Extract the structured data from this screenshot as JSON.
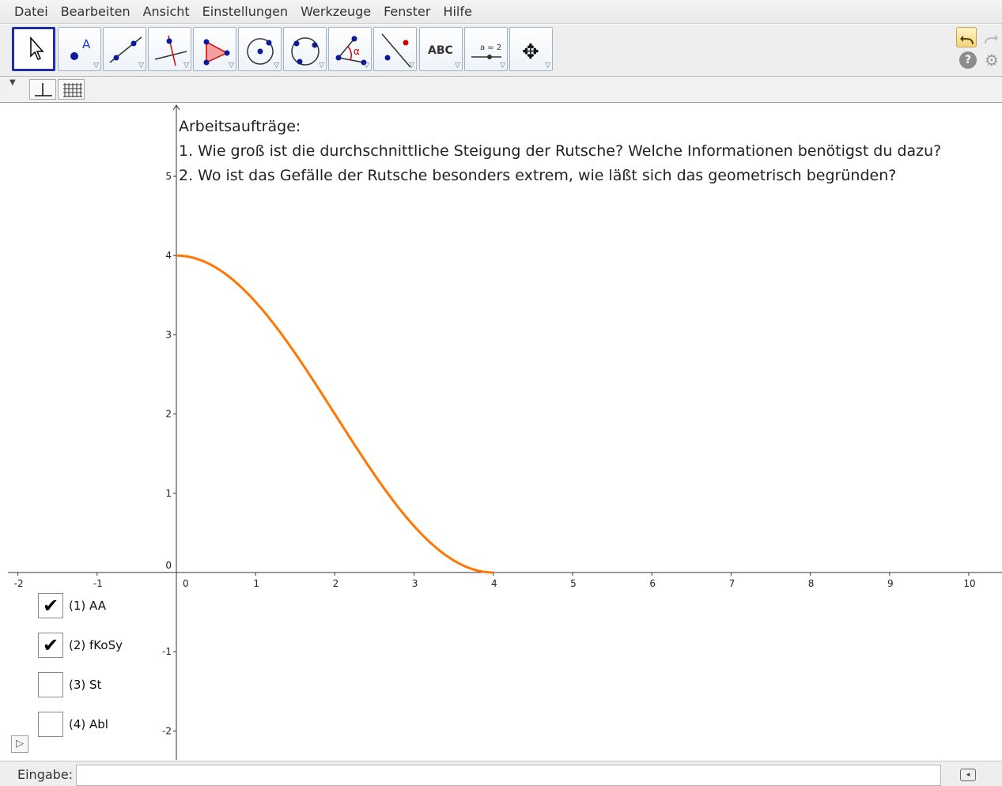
{
  "menu": [
    "Datei",
    "Bearbeiten",
    "Ansicht",
    "Einstellungen",
    "Werkzeuge",
    "Fenster",
    "Hilfe"
  ],
  "toolbar": {
    "tools": [
      {
        "name": "move-tool",
        "icon": "arrow-pointer-icon"
      },
      {
        "name": "point-tool",
        "icon": "point-icon",
        "glyph": "A"
      },
      {
        "name": "line-tool",
        "icon": "line-through-points-icon"
      },
      {
        "name": "perpendicular-tool",
        "icon": "perpendicular-line-icon"
      },
      {
        "name": "polygon-tool",
        "icon": "polygon-icon"
      },
      {
        "name": "circle-tool",
        "icon": "circle-center-point-icon"
      },
      {
        "name": "ellipse-tool",
        "icon": "circle-through-points-icon"
      },
      {
        "name": "angle-tool",
        "icon": "angle-icon",
        "glyph": "α"
      },
      {
        "name": "reflect-tool",
        "icon": "reflect-about-line-icon"
      },
      {
        "name": "text-tool",
        "icon": "text-icon",
        "glyph": "ABC"
      },
      {
        "name": "slider-tool",
        "icon": "slider-icon",
        "glyph": "a = 2"
      },
      {
        "name": "move-view-tool",
        "icon": "move-graphics-view-icon",
        "glyph": "✥"
      }
    ],
    "active_tool": "move-tool"
  },
  "style_bar": {
    "buttons": [
      {
        "name": "show-axes-toggle",
        "icon": "axes-icon"
      },
      {
        "name": "show-grid-toggle",
        "icon": "grid-icon"
      }
    ]
  },
  "task_text": {
    "heading": "Arbeitsaufträge:",
    "item1": "1. Wie groß ist die durchschnittliche Steigung der Rutsche? Welche Informationen benötigst du dazu?",
    "item2": "2. Wo ist das Gefälle der Rutsche besonders extrem, wie läßt sich das geometrisch begründen?"
  },
  "checkboxes": [
    {
      "label": "(1) AA",
      "checked": true
    },
    {
      "label": "(2) fKoSy",
      "checked": true
    },
    {
      "label": "(3) St",
      "checked": false
    },
    {
      "label": "(4) Abl",
      "checked": false
    }
  ],
  "graph": {
    "x_ticks": [
      "-2",
      "-1",
      "0",
      "1",
      "2",
      "3",
      "4",
      "5",
      "6",
      "7",
      "8",
      "9",
      "10"
    ],
    "y_ticks": [
      "-2",
      "-1",
      "0",
      "1",
      "2",
      "3",
      "4",
      "5"
    ],
    "x_range": [
      -2.2,
      10.4
    ],
    "y_range": [
      -2.4,
      5.9
    ],
    "curve_color": "#ff7700",
    "curve_function": "2*cos(pi*x/4)+2",
    "curve_domain": [
      0,
      4
    ]
  },
  "input_bar": {
    "label": "Eingabe:",
    "value": "",
    "placeholder": ""
  }
}
